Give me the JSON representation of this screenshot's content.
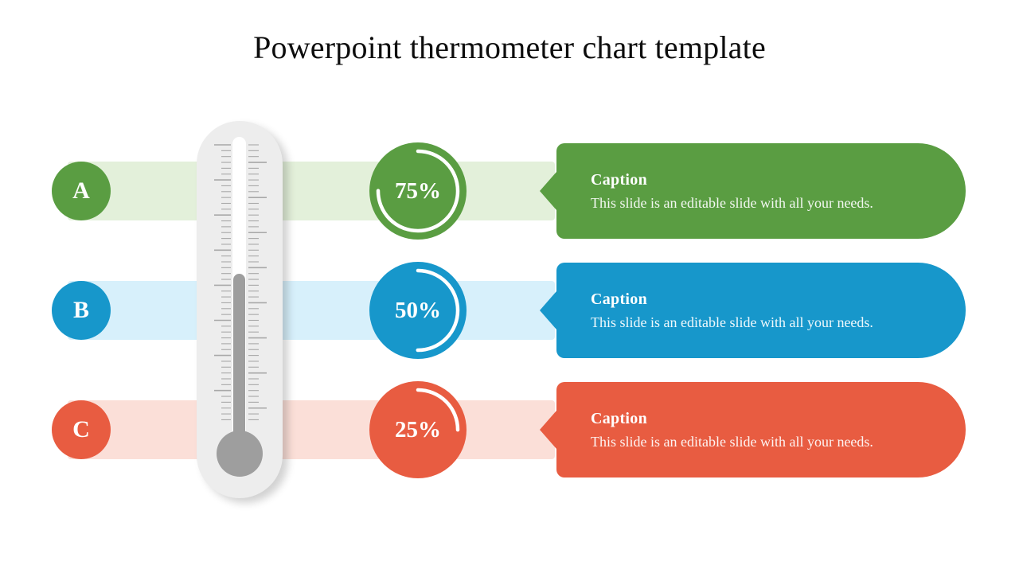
{
  "title": "Powerpoint thermometer chart template",
  "rows": [
    {
      "label": "A",
      "percent": 75,
      "percent_label": "75%",
      "caption_title": "Caption",
      "caption_body": "This slide is an editable slide with all your needs.",
      "accent_color": "#5a9d42",
      "band_color": "#e3f0da"
    },
    {
      "label": "B",
      "percent": 50,
      "percent_label": "50%",
      "caption_title": "Caption",
      "caption_body": "This slide is an editable slide with all your needs.",
      "accent_color": "#1797cb",
      "band_color": "#d7f0fb"
    },
    {
      "label": "C",
      "percent": 25,
      "percent_label": "25%",
      "caption_title": "Caption",
      "caption_body": "This slide is an editable slide with all your needs.",
      "accent_color": "#e85c41",
      "band_color": "#fbdfd8"
    }
  ],
  "thermometer": {
    "body_color": "#ededed",
    "tube_color": "#ffffff",
    "mercury_color": "#9e9e9e",
    "tick_color": "#a8a8a8"
  },
  "chart_data": {
    "type": "bar",
    "categories": [
      "A",
      "B",
      "C"
    ],
    "values": [
      75,
      50,
      25
    ],
    "unit": "%",
    "title": "Powerpoint thermometer chart template",
    "series_colors": [
      "#5a9d42",
      "#1797cb",
      "#e85c41"
    ],
    "legend_position": "none",
    "grid": false
  }
}
